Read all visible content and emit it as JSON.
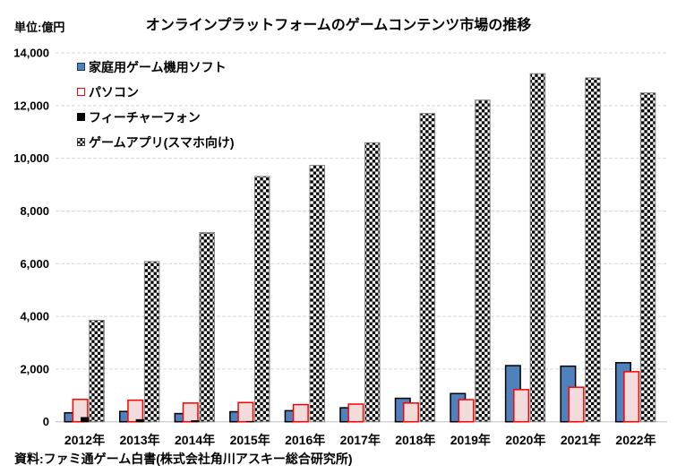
{
  "unit_label": "単位:億円",
  "title": "オンラインプラットフォームのゲームコンテンツ市場の推移",
  "source": "資料:ファミ通ゲーム白書(株式会社角川アスキー総合研究所)",
  "chart_data": {
    "type": "bar",
    "title": "オンラインプラットフォームのゲームコンテンツ市場の推移",
    "unit": "億円",
    "categories": [
      "2012年",
      "2013年",
      "2014年",
      "2015年",
      "2016年",
      "2017年",
      "2018年",
      "2019年",
      "2020年",
      "2021年",
      "2022年"
    ],
    "series": [
      {
        "name": "家庭用ゲーム機用ソフト",
        "fill": "#4f81bd",
        "border": "#000000",
        "border_width": 1.5,
        "values": [
          340,
          390,
          310,
          380,
          420,
          530,
          890,
          1070,
          2130,
          2110,
          2240
        ]
      },
      {
        "name": "パソコン",
        "fill": "#f2dcdb",
        "border": "#ff0000",
        "border_width": 1.5,
        "values": [
          850,
          820,
          710,
          730,
          650,
          670,
          710,
          840,
          1220,
          1310,
          1900
        ]
      },
      {
        "name": "フィーチャーフォン",
        "fill": "#000000",
        "border": "#000000",
        "border_width": 1,
        "values": [
          160,
          80,
          40,
          10,
          0,
          0,
          0,
          0,
          0,
          0,
          0
        ]
      },
      {
        "name": "ゲームアプリ(スマホ向け)",
        "fill": "checker",
        "border": "#808080",
        "border_width": 1,
        "values": [
          3850,
          6080,
          7180,
          9310,
          9730,
          10590,
          11700,
          12210,
          13210,
          13050,
          12480
        ]
      }
    ],
    "xlabel": "",
    "ylabel": "",
    "ylim": [
      0,
      14000
    ],
    "ytick_step": 2000,
    "grid": true,
    "gridline_color": "#d9d9d9",
    "baseline_color": "#bfbfbf",
    "legend_position": "top-left-inside"
  }
}
